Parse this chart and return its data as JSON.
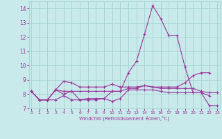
{
  "xlabel": "Windchill (Refroidissement éolien,°C)",
  "background_color": "#c8eaea",
  "grid_color": "#aad4d4",
  "line_color": "#993399",
  "xlim": [
    -0.3,
    23.3
  ],
  "ylim": [
    7,
    14.5
  ],
  "xticks": [
    0,
    1,
    2,
    3,
    4,
    5,
    6,
    7,
    8,
    9,
    10,
    11,
    12,
    13,
    14,
    15,
    16,
    17,
    18,
    19,
    20,
    21,
    22,
    23
  ],
  "yticks": [
    7,
    8,
    9,
    10,
    11,
    12,
    13,
    14
  ],
  "lines": [
    {
      "x": [
        0,
        1,
        2,
        3,
        4,
        5,
        6,
        7,
        8,
        9,
        10,
        11,
        12,
        13,
        14,
        15,
        16,
        17,
        18,
        19,
        20,
        21,
        22
      ],
      "y": [
        8.2,
        7.6,
        7.6,
        8.3,
        8.0,
        8.2,
        7.6,
        7.7,
        7.7,
        7.7,
        8.2,
        8.2,
        9.5,
        10.3,
        12.2,
        14.2,
        13.3,
        12.1,
        12.1,
        9.9,
        8.1,
        8.1,
        7.9
      ]
    },
    {
      "x": [
        0,
        1,
        2,
        3,
        4,
        5,
        6,
        7,
        8,
        9,
        10,
        11,
        12,
        13,
        14,
        15,
        16,
        17,
        18,
        19,
        20,
        21,
        22
      ],
      "y": [
        8.2,
        7.6,
        7.6,
        8.3,
        8.9,
        8.8,
        8.5,
        8.5,
        8.5,
        8.5,
        8.7,
        8.5,
        8.5,
        8.5,
        8.6,
        8.5,
        8.5,
        8.5,
        8.5,
        8.8,
        9.3,
        9.5,
        9.5
      ]
    },
    {
      "x": [
        0,
        1,
        2,
        3,
        4,
        5,
        6,
        7,
        8,
        9,
        10,
        11,
        12,
        13,
        14,
        15,
        16,
        17,
        18,
        19,
        20,
        21,
        22,
        23
      ],
      "y": [
        8.2,
        7.6,
        7.6,
        7.6,
        7.9,
        7.6,
        7.6,
        7.6,
        7.6,
        7.7,
        7.5,
        7.7,
        8.3,
        8.3,
        8.3,
        8.3,
        8.2,
        8.1,
        8.1,
        8.1,
        8.1,
        8.1,
        7.2,
        7.2
      ]
    },
    {
      "x": [
        0,
        1,
        2,
        3,
        4,
        5,
        6,
        7,
        8,
        9,
        10,
        11,
        12,
        13,
        14,
        15,
        16,
        17,
        18,
        19,
        20,
        21,
        22,
        23
      ],
      "y": [
        8.2,
        7.6,
        7.6,
        8.3,
        8.2,
        8.2,
        8.2,
        8.2,
        8.2,
        8.2,
        8.2,
        8.2,
        8.4,
        8.4,
        8.6,
        8.5,
        8.4,
        8.4,
        8.4,
        8.4,
        8.4,
        8.2,
        8.1,
        8.1
      ]
    }
  ]
}
